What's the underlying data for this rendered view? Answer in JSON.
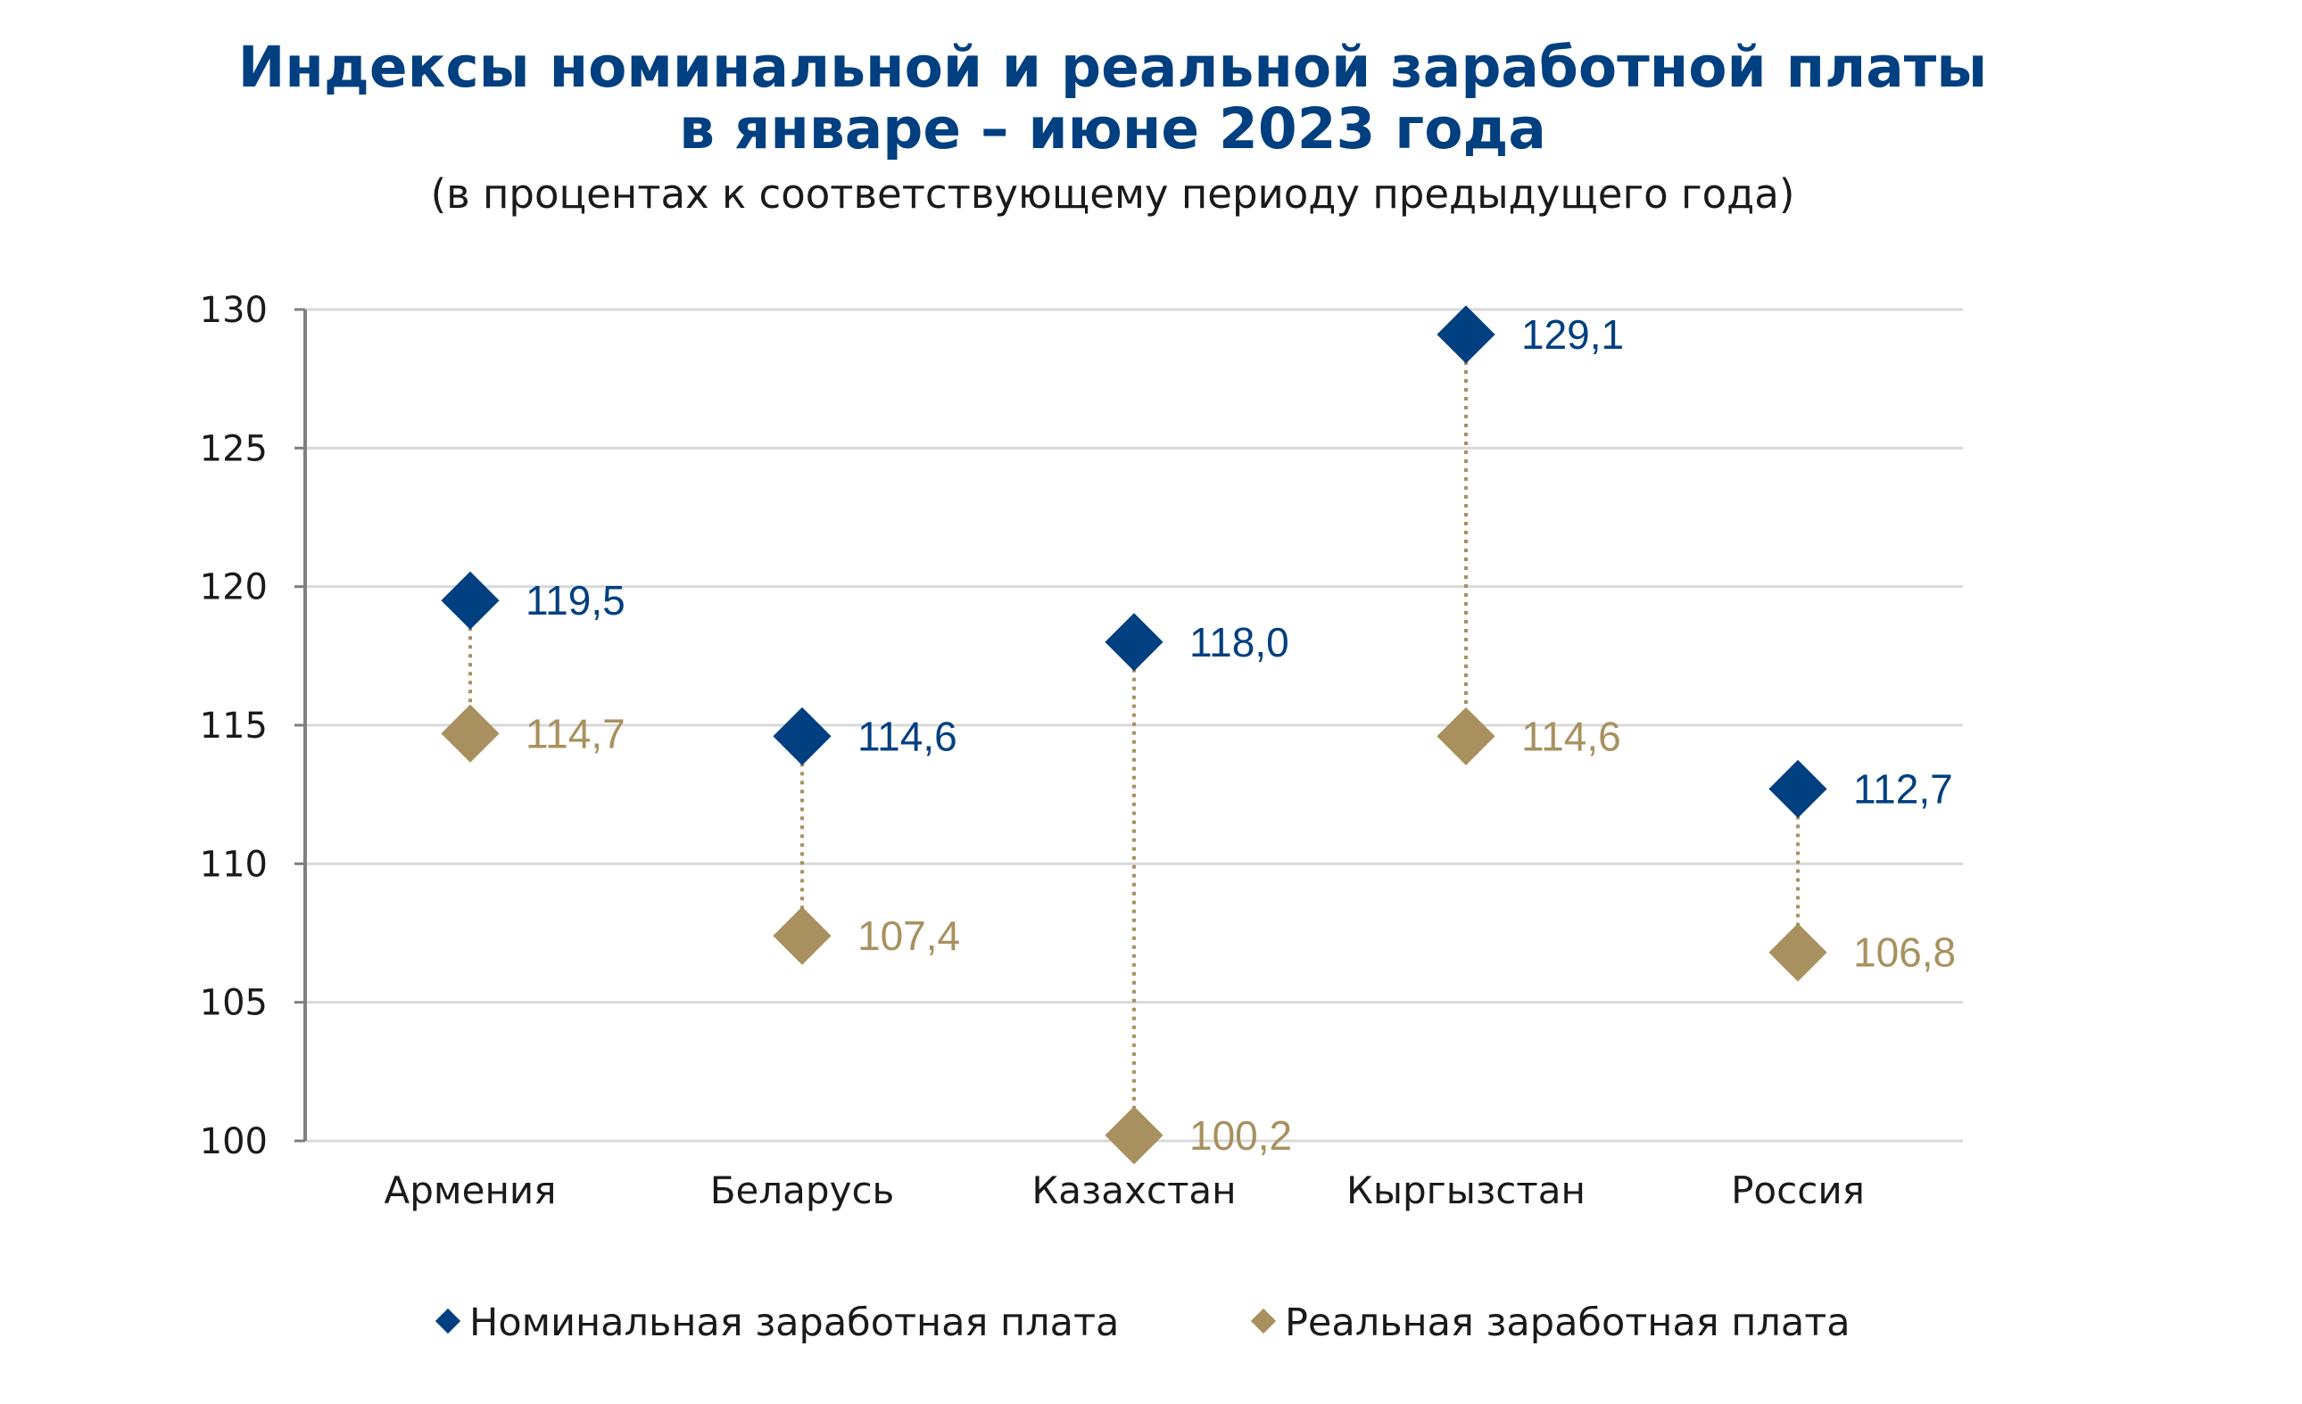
{
  "chart_data": {
    "type": "scatter",
    "title_line1": "Индексы номинальной и реальной заработной платы",
    "title_line2": "в январе – июне 2023 года",
    "subtitle": "(в процентах к соответствующему периоду предыдущего года)",
    "categories": [
      "Армения",
      "Беларусь",
      "Казахстан",
      "Кыргызстан",
      "Россия"
    ],
    "series": [
      {
        "name": "Номинальная заработная плата",
        "color": "#003F80",
        "values": [
          119.5,
          114.6,
          118.0,
          129.1,
          112.7
        ],
        "labels": [
          "119,5",
          "114,6",
          "118,0",
          "129,1",
          "112,7"
        ]
      },
      {
        "name": "Реальная заработная плата",
        "color": "#A8915F",
        "values": [
          114.7,
          107.4,
          100.2,
          114.6,
          106.8
        ],
        "labels": [
          "114,7",
          "107,4",
          "100,2",
          "114,6",
          "106,8"
        ]
      }
    ],
    "ylim": [
      100,
      130
    ],
    "yticks": [
      100,
      105,
      110,
      115,
      120,
      125,
      130
    ],
    "grid": true,
    "legend_position": "bottom",
    "connector_color": "#A8915F",
    "title_color": "#003F80"
  }
}
